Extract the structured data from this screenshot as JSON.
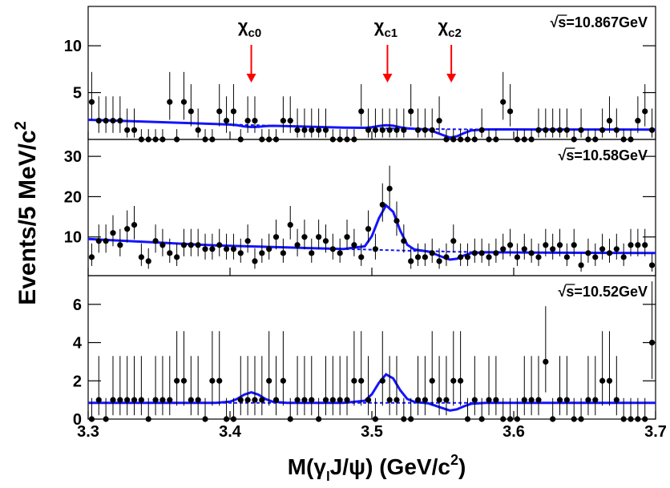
{
  "chart_data": {
    "type": "scatter",
    "y_label": {
      "text": "Events/5 MeV/c",
      "sup": "2"
    },
    "x_label": {
      "pre": "M(γ",
      "sub": "l",
      "mid": "J/ψ) (GeV/c",
      "sup": "2",
      "post": ")"
    },
    "xlim": [
      3.3,
      3.7
    ],
    "xticks": [
      3.3,
      3.4,
      3.5,
      3.6,
      3.7
    ],
    "point_color": "#000000",
    "fit_color": "#1414ff",
    "arrow_color": "#ff0000",
    "x": [
      3.3025,
      3.3075,
      3.3125,
      3.3175,
      3.3225,
      3.3275,
      3.3325,
      3.3375,
      3.3425,
      3.3475,
      3.3525,
      3.3575,
      3.3625,
      3.3675,
      3.3725,
      3.3775,
      3.3825,
      3.3875,
      3.3925,
      3.3975,
      3.4025,
      3.4075,
      3.4125,
      3.4175,
      3.4225,
      3.4275,
      3.4325,
      3.4375,
      3.4425,
      3.4475,
      3.4525,
      3.4575,
      3.4625,
      3.4675,
      3.4725,
      3.4775,
      3.4825,
      3.4875,
      3.4925,
      3.4975,
      3.5025,
      3.5075,
      3.5125,
      3.5175,
      3.5225,
      3.5275,
      3.5325,
      3.5375,
      3.5425,
      3.5475,
      3.5525,
      3.5575,
      3.5625,
      3.5675,
      3.5725,
      3.5775,
      3.5825,
      3.5875,
      3.5925,
      3.5975,
      3.6025,
      3.6075,
      3.6125,
      3.6175,
      3.6225,
      3.6275,
      3.6325,
      3.6375,
      3.6425,
      3.6475,
      3.6525,
      3.6575,
      3.6625,
      3.6675,
      3.6725,
      3.6775,
      3.6825,
      3.6875,
      3.6925,
      3.6975
    ],
    "fit_x": [
      3.3,
      3.35,
      3.39,
      3.4,
      3.405,
      3.41,
      3.415,
      3.42,
      3.425,
      3.43,
      3.44,
      3.48,
      3.495,
      3.5,
      3.505,
      3.51,
      3.515,
      3.52,
      3.525,
      3.53,
      3.54,
      3.55,
      3.555,
      3.56,
      3.565,
      3.57,
      3.58,
      3.62,
      3.7
    ],
    "markers": [
      {
        "x": 3.415,
        "symbol": "χ",
        "subscript": "c0"
      },
      {
        "x": 3.511,
        "symbol": "χ",
        "subscript": "c1"
      },
      {
        "x": 3.556,
        "symbol": "χ",
        "subscript": "c2"
      }
    ],
    "panels": [
      {
        "annotation": "√s=10.867GeV",
        "ylim": [
          0,
          14.2
        ],
        "yticks": [
          5,
          10
        ],
        "values": [
          4,
          2,
          2,
          2,
          2,
          1,
          1,
          0,
          0,
          0,
          0,
          4,
          0,
          4,
          3,
          1,
          0,
          0,
          3,
          2,
          3,
          0,
          2,
          2,
          0,
          0,
          0,
          2,
          2,
          1,
          1,
          1,
          1,
          1,
          0,
          0,
          0,
          0,
          3,
          1,
          1,
          1,
          1,
          1,
          1,
          3,
          1,
          1,
          1,
          2,
          0,
          0,
          0,
          0,
          0,
          1,
          0,
          0,
          4,
          3,
          0,
          0,
          0,
          1,
          1,
          1,
          1,
          1,
          0,
          1,
          0,
          0,
          1,
          2,
          1,
          0,
          0,
          2,
          3,
          1
        ],
        "err_lo": [
          1.9,
          1.3,
          1.3,
          1.3,
          1.3,
          0.8,
          0.8,
          0,
          0,
          0,
          0,
          1.9,
          0,
          1.9,
          1.6,
          0.8,
          0,
          0,
          1.6,
          1.3,
          1.6,
          0,
          1.3,
          1.3,
          0,
          0,
          0,
          1.3,
          1.3,
          0.8,
          0.8,
          0.8,
          0.8,
          0.8,
          0,
          0,
          0,
          0,
          1.6,
          0.8,
          0.8,
          0.8,
          0.8,
          0.8,
          0.8,
          1.6,
          0.8,
          0.8,
          0.8,
          1.3,
          0,
          0,
          0,
          0,
          0,
          0.8,
          0,
          0,
          1.9,
          1.6,
          0,
          0,
          0,
          0.8,
          0.8,
          0.8,
          0.8,
          0.8,
          0,
          0.8,
          0,
          0,
          0.8,
          1.3,
          0.8,
          0,
          0,
          1.3,
          1.6,
          0.8
        ],
        "err_hi": [
          3.2,
          2.6,
          2.6,
          2.6,
          2.6,
          2.3,
          2.3,
          1.1,
          1.1,
          1.1,
          1.1,
          3.2,
          1.1,
          3.2,
          2.9,
          2.3,
          1.1,
          1.1,
          2.9,
          2.6,
          2.9,
          1.1,
          2.6,
          2.6,
          1.1,
          1.1,
          1.1,
          2.6,
          2.6,
          2.3,
          2.3,
          2.3,
          2.3,
          2.3,
          1.1,
          1.1,
          1.1,
          1.1,
          2.9,
          2.3,
          2.3,
          2.3,
          2.3,
          2.3,
          2.3,
          2.9,
          2.3,
          2.3,
          2.3,
          2.6,
          1.1,
          1.1,
          1.1,
          1.1,
          1.1,
          2.3,
          1.1,
          1.1,
          3.2,
          2.9,
          1.1,
          1.1,
          1.1,
          2.3,
          2.3,
          2.3,
          2.3,
          2.3,
          1.1,
          2.3,
          1.1,
          1.1,
          2.3,
          2.6,
          2.3,
          1.1,
          1.1,
          2.6,
          2.9,
          2.3
        ],
        "fit": [
          2.1,
          1.85,
          1.65,
          1.58,
          1.51,
          1.39,
          1.33,
          1.35,
          1.42,
          1.45,
          1.42,
          1.27,
          1.24,
          1.31,
          1.44,
          1.52,
          1.46,
          1.3,
          1.19,
          1.14,
          1.05,
          0.47,
          0.2,
          0.33,
          0.68,
          0.96,
          1.07,
          1.06,
          1.05
        ],
        "background": [
          2.1,
          1.85,
          1.65,
          1.6,
          1.58,
          1.55,
          1.53,
          1.51,
          1.49,
          1.47,
          1.42,
          1.27,
          1.22,
          1.2,
          1.19,
          1.17,
          1.16,
          1.15,
          1.14,
          1.13,
          1.11,
          1.1,
          1.09,
          1.09,
          1.08,
          1.08,
          1.07,
          1.06,
          1.05
        ]
      },
      {
        "annotation": "√s=10.58GeV",
        "ylim": [
          0.4,
          34.2
        ],
        "yticks": [
          10,
          20,
          30
        ],
        "values": [
          5,
          9,
          9,
          11,
          8,
          12,
          13,
          5,
          4,
          9,
          8,
          6,
          5,
          8,
          8,
          8,
          7,
          7,
          8,
          7,
          7,
          6,
          9,
          4,
          6,
          7,
          10,
          6,
          13,
          8,
          10,
          6,
          10,
          9,
          7,
          6,
          10,
          8,
          5,
          12,
          7,
          18,
          22,
          14,
          9,
          4,
          5,
          5,
          6,
          4,
          5,
          9,
          5,
          5,
          6,
          6,
          5,
          6,
          7,
          8,
          5,
          7,
          6,
          5,
          8,
          7,
          8,
          5,
          8,
          3,
          6,
          5,
          7,
          6,
          7,
          5,
          8,
          8,
          8,
          3
        ],
        "err_lo": [
          2.2,
          2.9,
          2.9,
          3.3,
          2.8,
          3.4,
          3.6,
          2.2,
          1.9,
          2.9,
          2.8,
          2.4,
          2.2,
          2.8,
          2.8,
          2.8,
          2.6,
          2.6,
          2.8,
          2.6,
          2.6,
          2.4,
          2.9,
          1.9,
          2.4,
          2.6,
          3.1,
          2.4,
          3.6,
          2.8,
          3.1,
          2.4,
          3.1,
          2.9,
          2.6,
          2.4,
          3.1,
          2.8,
          2.2,
          3.4,
          2.6,
          4.2,
          4.7,
          3.7,
          2.9,
          1.9,
          2.2,
          2.2,
          2.4,
          1.9,
          2.2,
          2.9,
          2.2,
          2.2,
          2.4,
          2.4,
          2.2,
          2.4,
          2.6,
          2.8,
          2.2,
          2.6,
          2.4,
          2.2,
          2.8,
          2.6,
          2.8,
          2.2,
          2.8,
          1.6,
          2.4,
          2.2,
          2.6,
          2.4,
          2.6,
          2.2,
          2.8,
          2.8,
          2.8,
          1.6
        ],
        "err_hi": [
          3.4,
          4.1,
          4.1,
          4.4,
          4.0,
          4.6,
          4.7,
          3.4,
          3.2,
          4.1,
          4.0,
          3.6,
          3.4,
          4.0,
          4.0,
          4.0,
          3.8,
          3.8,
          4.0,
          3.8,
          3.8,
          3.6,
          4.1,
          3.2,
          3.6,
          3.8,
          4.3,
          3.6,
          4.7,
          4.0,
          4.3,
          3.6,
          4.3,
          4.1,
          3.8,
          3.6,
          4.3,
          4.0,
          3.4,
          4.6,
          3.8,
          5.3,
          5.7,
          4.8,
          4.1,
          3.2,
          3.4,
          3.4,
          3.6,
          3.2,
          3.4,
          4.1,
          3.4,
          3.4,
          3.6,
          3.6,
          3.4,
          3.6,
          3.8,
          4.0,
          3.4,
          3.8,
          3.6,
          3.4,
          4.0,
          3.8,
          4.0,
          3.4,
          4.0,
          2.9,
          3.6,
          3.4,
          3.8,
          3.6,
          3.8,
          3.4,
          4.0,
          4.0,
          4.0,
          2.9
        ],
        "fit": [
          9.5,
          8.6,
          7.9,
          7.8,
          7.75,
          7.7,
          7.65,
          7.6,
          7.55,
          7.5,
          7.4,
          7.0,
          7.68,
          10.21,
          14.64,
          17.84,
          16.22,
          11.58,
          8.06,
          6.89,
          6.36,
          5.0,
          4.37,
          4.6,
          5.42,
          5.99,
          6.2,
          6.1,
          6.0
        ],
        "background": [
          9.5,
          8.6,
          7.9,
          7.8,
          7.75,
          7.7,
          7.65,
          7.6,
          7.55,
          7.5,
          7.4,
          7.0,
          6.9,
          6.85,
          6.8,
          6.75,
          6.7,
          6.65,
          6.6,
          6.55,
          6.5,
          6.4,
          6.35,
          6.3,
          6.3,
          6.25,
          6.2,
          6.1,
          6.0
        ]
      },
      {
        "annotation": "√s=10.52GeV",
        "ylim": [
          0,
          7.5
        ],
        "yticks": [
          0,
          2,
          4,
          6
        ],
        "values": [
          0,
          1,
          0,
          1,
          1,
          1,
          1,
          1,
          0,
          1,
          1,
          1,
          2,
          2,
          1,
          1,
          0,
          2,
          2,
          0,
          0,
          1,
          1,
          1,
          1,
          2,
          1,
          2,
          0,
          1,
          1,
          1,
          0,
          1,
          1,
          1,
          1,
          2,
          2,
          1,
          0,
          2,
          1,
          1,
          0,
          0,
          1,
          1,
          2,
          1,
          1,
          2,
          2,
          0,
          1,
          0,
          1,
          1,
          0,
          0,
          0,
          1,
          1,
          1,
          3,
          0,
          1,
          1,
          0,
          0,
          1,
          1,
          2,
          2,
          1,
          0,
          0,
          0,
          0,
          4
        ],
        "err_lo": [
          0,
          0.8,
          0,
          0.8,
          0.8,
          0.8,
          0.8,
          0.8,
          0,
          0.8,
          0.8,
          0.8,
          1.3,
          1.3,
          0.8,
          0.8,
          0,
          1.3,
          1.3,
          0,
          0,
          0.8,
          0.8,
          0.8,
          0.8,
          1.3,
          0.8,
          1.3,
          0,
          0.8,
          0.8,
          0.8,
          0,
          0.8,
          0.8,
          0.8,
          0.8,
          1.3,
          1.3,
          0.8,
          0,
          1.3,
          0.8,
          0.8,
          0,
          0,
          0.8,
          0.8,
          1.3,
          0.8,
          0.8,
          1.3,
          1.3,
          0,
          0.8,
          0,
          0.8,
          0.8,
          0,
          0,
          0,
          0.8,
          0.8,
          0.8,
          1.6,
          0,
          0.8,
          0.8,
          0,
          0,
          0.8,
          0.8,
          1.3,
          1.3,
          0.8,
          0,
          0,
          0,
          0,
          1.9
        ],
        "err_hi": [
          1.1,
          2.3,
          1.1,
          2.3,
          2.3,
          2.3,
          2.3,
          2.3,
          1.1,
          2.3,
          2.3,
          2.3,
          2.6,
          2.6,
          2.3,
          2.3,
          1.1,
          2.6,
          2.6,
          1.1,
          1.1,
          2.3,
          2.3,
          2.3,
          2.3,
          2.6,
          2.3,
          2.6,
          1.1,
          2.3,
          2.3,
          2.3,
          1.1,
          2.3,
          2.3,
          2.3,
          2.3,
          2.6,
          2.6,
          2.3,
          1.1,
          2.6,
          2.3,
          2.3,
          1.1,
          1.1,
          2.3,
          2.3,
          2.6,
          2.3,
          2.3,
          2.6,
          2.6,
          1.1,
          2.3,
          1.1,
          2.3,
          2.3,
          1.1,
          1.1,
          1.1,
          2.3,
          2.3,
          2.3,
          2.9,
          1.1,
          2.3,
          2.3,
          1.1,
          1.1,
          2.3,
          2.3,
          2.6,
          2.6,
          2.3,
          1.1,
          1.1,
          1.1,
          1.1,
          3.2
        ],
        "fit": [
          0.85,
          0.85,
          0.85,
          0.91,
          1.05,
          1.28,
          1.4,
          1.28,
          1.05,
          0.91,
          0.85,
          0.85,
          0.96,
          1.3,
          1.9,
          2.34,
          2.13,
          1.51,
          1.05,
          0.9,
          0.82,
          0.57,
          0.45,
          0.51,
          0.67,
          0.8,
          0.85,
          0.85,
          0.85
        ],
        "background": [
          0.85,
          0.85,
          0.85,
          0.85,
          0.85,
          0.85,
          0.85,
          0.85,
          0.85,
          0.85,
          0.85,
          0.85,
          0.85,
          0.85,
          0.85,
          0.85,
          0.85,
          0.85,
          0.85,
          0.85,
          0.85,
          0.85,
          0.85,
          0.85,
          0.85,
          0.85,
          0.85,
          0.85,
          0.85
        ]
      }
    ]
  }
}
